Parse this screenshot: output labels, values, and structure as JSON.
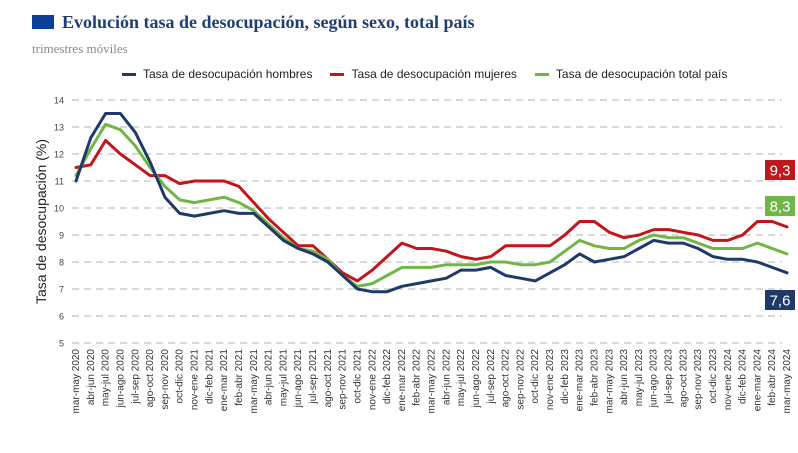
{
  "header": {
    "title": "Evolución tasa de desocupación, según sexo, total país",
    "subtitle": "trimestres móviles"
  },
  "colors": {
    "hombres": "#1f3a68",
    "mujeres": "#c0161d",
    "total": "#71b546",
    "grid": "#b3b3b3",
    "title": "#1f3f73",
    "flag": "#0f3d9a"
  },
  "chart_data": {
    "type": "line",
    "title": "Evolución tasa de desocupación, según sexo, total país",
    "subtitle": "trimestres móviles",
    "ylabel": "Tasa de desocupación (%)",
    "xlabel": "",
    "ylim": [
      5,
      14
    ],
    "yticks": [
      5,
      6,
      7,
      8,
      9,
      10,
      11,
      12,
      13,
      14
    ],
    "grid": "horizontal dashed",
    "legend_position": "top",
    "categories": [
      "mar-may 2020",
      "abr-jun 2020",
      "may-jul 2020",
      "jun-ago 2020",
      "jul-sep 2020",
      "ago-oct 2020",
      "sep-nov 2020",
      "oct-dic 2020",
      "nov-ene 2021",
      "dic-feb 2021",
      "ene-mar 2021",
      "feb-abr 2021",
      "mar-may 2021",
      "abr-jun 2021",
      "may-jul 2021",
      "jun-ago 2021",
      "jul-sep 2021",
      "ago-oct 2021",
      "sep-nov 2021",
      "oct-dic 2021",
      "nov-ene 2022",
      "dic-feb 2022",
      "ene-mar 2022",
      "feb-abr 2022",
      "mar-may 2022",
      "abr-jun 2022",
      "may-jul 2022",
      "jun-ago 2022",
      "jul-sep 2022",
      "ago-oct 2022",
      "sep-nov 2022",
      "oct-dic 2022",
      "nov-ene 2023",
      "dic-feb 2023",
      "ene-mar 2023",
      "feb-abr 2023",
      "mar-may 2023",
      "abr-jun 2023",
      "may-jul 2023",
      "jun-ago 2023",
      "jul-sep 2023",
      "ago-oct 2023",
      "sep-nov 2023",
      "oct-dic 2023",
      "nov-ene 2024",
      "dic-feb 2024",
      "ene-mar 2024",
      "feb-abr 2024",
      "mar-may 2024"
    ],
    "series": [
      {
        "name": "Tasa de desocupación hombres",
        "color": "#1f3a68",
        "values": [
          11.0,
          12.6,
          13.5,
          13.5,
          12.8,
          11.7,
          10.4,
          9.8,
          9.7,
          9.8,
          9.9,
          9.8,
          9.8,
          9.3,
          8.8,
          8.5,
          8.3,
          8.0,
          7.5,
          7.0,
          6.9,
          6.9,
          7.1,
          7.2,
          7.3,
          7.4,
          7.7,
          7.7,
          7.8,
          7.5,
          7.4,
          7.3,
          7.6,
          7.9,
          8.3,
          8.0,
          8.1,
          8.2,
          8.5,
          8.8,
          8.7,
          8.7,
          8.5,
          8.2,
          8.1,
          8.1,
          8.0,
          7.8,
          7.6
        ]
      },
      {
        "name": "Tasa de desocupación mujeres",
        "color": "#c0161d",
        "values": [
          11.5,
          11.6,
          12.5,
          12.0,
          11.6,
          11.2,
          11.2,
          10.9,
          11.0,
          11.0,
          11.0,
          10.8,
          10.2,
          9.6,
          9.1,
          8.6,
          8.6,
          8.1,
          7.6,
          7.3,
          7.7,
          8.2,
          8.7,
          8.5,
          8.5,
          8.4,
          8.2,
          8.1,
          8.2,
          8.6,
          8.6,
          8.6,
          8.6,
          9.0,
          9.5,
          9.5,
          9.1,
          8.9,
          9.0,
          9.2,
          9.2,
          9.1,
          9.0,
          8.8,
          8.8,
          9.0,
          9.5,
          9.5,
          9.3
        ]
      },
      {
        "name": "Tasa de desocupación total país",
        "color": "#71b546",
        "values": [
          11.2,
          12.2,
          13.1,
          12.9,
          12.3,
          11.5,
          10.8,
          10.3,
          10.2,
          10.3,
          10.4,
          10.2,
          9.9,
          9.4,
          8.9,
          8.5,
          8.4,
          8.1,
          7.5,
          7.1,
          7.2,
          7.5,
          7.8,
          7.8,
          7.8,
          7.9,
          7.9,
          7.9,
          8.0,
          8.0,
          7.9,
          7.9,
          8.0,
          8.4,
          8.8,
          8.6,
          8.5,
          8.5,
          8.8,
          9.0,
          8.9,
          8.9,
          8.7,
          8.5,
          8.5,
          8.5,
          8.7,
          8.5,
          8.3
        ]
      }
    ],
    "end_labels": [
      {
        "series": "Tasa de desocupación mujeres",
        "text": "9,3",
        "color": "#c0161d"
      },
      {
        "series": "Tasa de desocupación total país",
        "text": "8,3",
        "color": "#71b546"
      },
      {
        "series": "Tasa de desocupación hombres",
        "text": "7,6",
        "color": "#1f3a68"
      }
    ]
  }
}
